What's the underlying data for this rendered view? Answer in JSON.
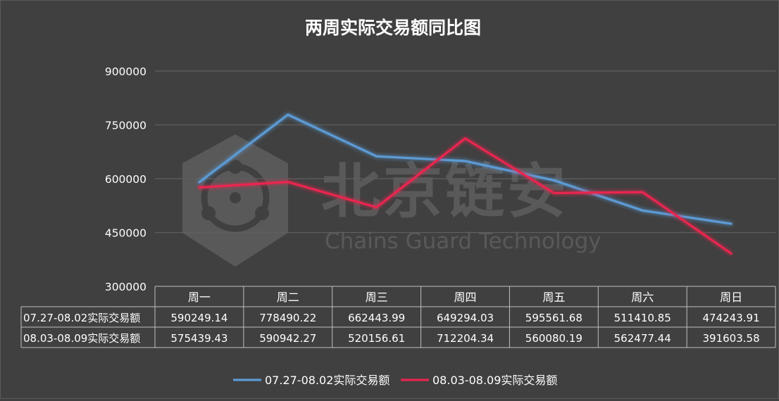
{
  "chart_data": {
    "type": "line",
    "title": "两周实际交易额同比图",
    "categories": [
      "周一",
      "周二",
      "周三",
      "周四",
      "周五",
      "周六",
      "周日"
    ],
    "series": [
      {
        "name": "07.27-08.02实际交易额",
        "color": "#5b9bd5",
        "values": [
          590249.14,
          778490.22,
          662443.99,
          649294.03,
          595561.68,
          511410.85,
          474243.91
        ],
        "labels": [
          "590249.14",
          "778490.22",
          "662443.99",
          "649294.03",
          "595561.68",
          "511410.85",
          "474243.91"
        ]
      },
      {
        "name": "08.03-08.09实际交易额",
        "color": "#e8254f",
        "values": [
          575439.43,
          590942.27,
          520156.61,
          712204.34,
          560080.19,
          562477.44,
          391603.58
        ],
        "labels": [
          "575439.43",
          "590942.27",
          "520156.61",
          "712204.34",
          "560080.19",
          "562477.44",
          "391603.58"
        ]
      }
    ],
    "y_ticks": [
      "900000",
      "750000",
      "600000",
      "450000",
      "300000"
    ],
    "ylim": [
      300000,
      900000
    ],
    "y_tick_values": [
      900000,
      750000,
      600000,
      450000,
      300000
    ],
    "grid": true,
    "legend_position": "bottom",
    "data_table": true
  },
  "watermark": {
    "brand_cn": "北京链安",
    "brand_en": "Chains Guard Technology"
  },
  "colors": {
    "background": "#404040",
    "gridline": "#5f5f5f",
    "text": "#ffffff"
  }
}
